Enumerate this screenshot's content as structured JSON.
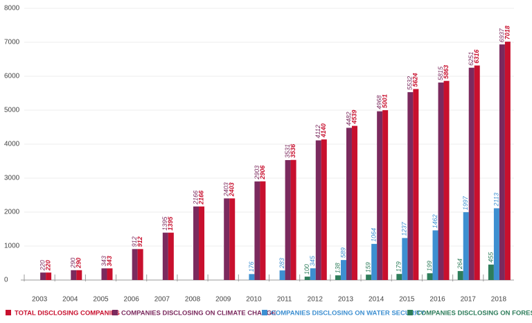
{
  "chart_data": {
    "type": "bar",
    "categories": [
      "2003",
      "2004",
      "2005",
      "2006",
      "2007",
      "2008",
      "2009",
      "2010",
      "2011",
      "2012",
      "2013",
      "2014",
      "2015",
      "2016",
      "2017",
      "2018"
    ],
    "series": [
      {
        "name": "COMPANIES DISCLOSING ON FORESTS",
        "color": "#2e7d5b",
        "values": [
          null,
          null,
          null,
          null,
          null,
          null,
          null,
          null,
          null,
          100,
          138,
          159,
          179,
          199,
          264,
          455
        ]
      },
      {
        "name": "COMPANIES DISCLOSING ON WATER SECURITY",
        "color": "#3d8fd1",
        "values": [
          null,
          null,
          null,
          null,
          null,
          null,
          null,
          176,
          283,
          345,
          589,
          1064,
          1237,
          1462,
          1997,
          2113
        ]
      },
      {
        "name": "COMPANIES DISCLOSING ON CLIMATE CHANGE",
        "color": "#7b2a5e",
        "values": [
          220,
          290,
          343,
          912,
          1395,
          2166,
          2403,
          2903,
          3531,
          4112,
          4482,
          4968,
          5532,
          5815,
          6251,
          6937
        ]
      },
      {
        "name": "TOTAL DISCLOSING COMPANIES",
        "color": "#c8102e",
        "values": [
          220,
          290,
          343,
          912,
          1395,
          2166,
          2403,
          2906,
          3536,
          4140,
          4539,
          5001,
          5624,
          5863,
          6316,
          7018
        ]
      }
    ],
    "ylim": [
      0,
      8000
    ],
    "yticks": [
      0,
      1000,
      2000,
      3000,
      4000,
      5000,
      6000,
      7000,
      8000
    ],
    "grid": true
  }
}
